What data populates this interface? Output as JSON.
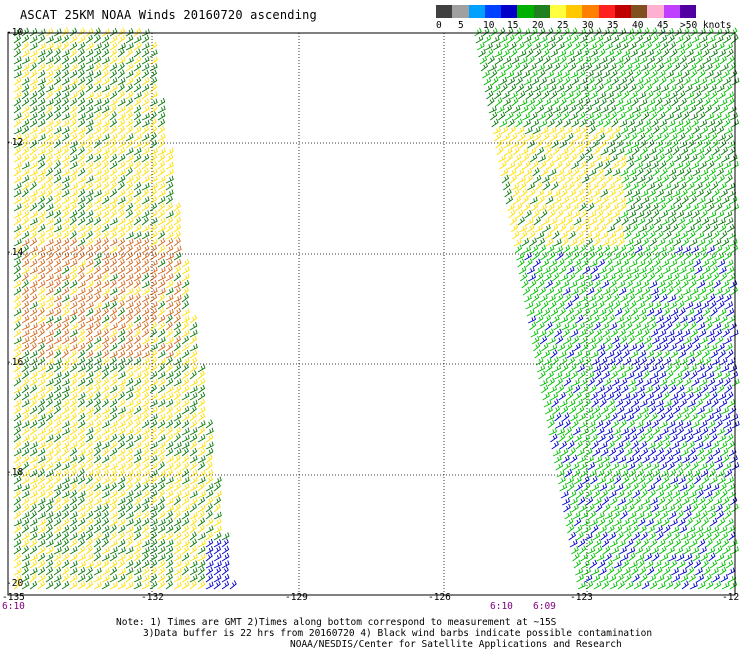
{
  "title": "ASCAT 25KM NOAA Winds 20160720 ascending",
  "legend": {
    "colors": [
      "#404040",
      "#a0a0a0",
      "#00a0ff",
      "#0040ff",
      "#0000c8",
      "#00b000",
      "#208020",
      "#ffff40",
      "#ffc800",
      "#ff8000",
      "#ff2020",
      "#c00000",
      "#805020",
      "#ffb0d0",
      "#c040ff",
      "#5000a0"
    ],
    "labels": [
      "0",
      "5",
      "10",
      "15",
      "20",
      "25",
      "30",
      "35",
      "40",
      "45",
      ">50 knots"
    ]
  },
  "axes": {
    "lat_ticks": [
      "-10",
      "-12",
      "-14",
      "-16",
      "-18",
      "-20"
    ],
    "lon_ticks": [
      "-135",
      "-132",
      "-129",
      "-126",
      "-123",
      "-12"
    ]
  },
  "times": {
    "left": "6:10",
    "right_a": "6:10",
    "right_b": "6:09"
  },
  "notes": {
    "line1": "Note: 1) Times are GMT 2)Times along bottom correspond to measurement at ~15S",
    "line2": "3)Data buffer is 22 hrs from 20160720 4) Black wind barbs indicate possible contamination",
    "line3": "NOAA/NESDIS/Center for Satellite Applications and Research"
  },
  "swath_colors": {
    "yellow": "#ffe000",
    "dark_green": "#0a7a0a",
    "green": "#00c000",
    "orange": "#d2691e",
    "blue": "#0000c8"
  }
}
